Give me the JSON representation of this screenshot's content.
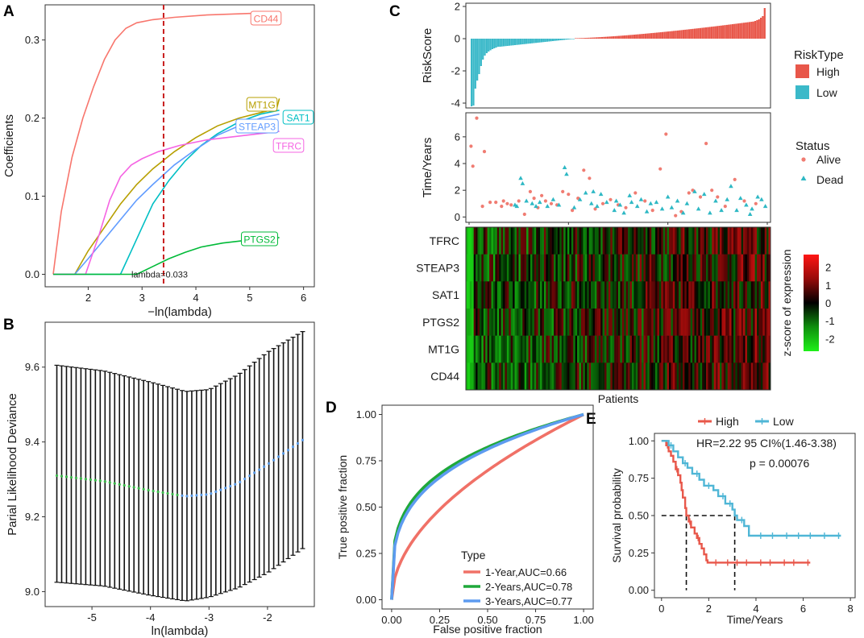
{
  "colors": {
    "high": "#E8574A",
    "low": "#3BB9C9",
    "alive": "#F07C72",
    "dead": "#2EB8C4",
    "cd44": "#F8766D",
    "mt1g": "#B79F00",
    "sat1": "#00BFC4",
    "steap3": "#619CFF",
    "tfrc": "#F564E3",
    "ptgs2": "#00BA38",
    "roc1": "#F07167",
    "roc2": "#1FA83A",
    "roc3": "#5D9BF0",
    "km_high": "#E8574A",
    "km_low": "#4FB6D6"
  },
  "panels": {
    "A": "A",
    "B": "B",
    "C": "C",
    "D": "D",
    "E": "E"
  },
  "chart_data": [
    {
      "id": "A",
      "type": "line",
      "title": "",
      "xlabel": "−ln(lambda)",
      "ylabel": "Coefficients",
      "xlim": [
        1.2,
        6.2
      ],
      "ylim": [
        -0.016,
        0.345
      ],
      "xticks": [
        "2",
        "3",
        "4",
        "5",
        "6"
      ],
      "yticks": [
        "0.0",
        "0.1",
        "0.2",
        "0.3"
      ],
      "cutoff": 3.4,
      "annotation": "lambda=0.033",
      "series": [
        {
          "name": "CD44",
          "key": "cd44",
          "x": [
            1.35,
            1.5,
            1.7,
            1.9,
            2.1,
            2.3,
            2.5,
            2.7,
            2.9,
            3.2,
            3.6,
            4.2,
            5.0,
            5.55
          ],
          "y": [
            0,
            0.08,
            0.15,
            0.2,
            0.24,
            0.275,
            0.3,
            0.315,
            0.322,
            0.326,
            0.329,
            0.332,
            0.334,
            0.335
          ]
        },
        {
          "name": "MT1G",
          "key": "mt1g",
          "x": [
            1.75,
            2.0,
            2.3,
            2.6,
            2.9,
            3.2,
            3.6,
            4.0,
            4.4,
            4.8,
            5.2,
            5.5,
            5.55
          ],
          "y": [
            0,
            0.03,
            0.06,
            0.09,
            0.115,
            0.135,
            0.157,
            0.175,
            0.19,
            0.2,
            0.207,
            0.212,
            0.225
          ]
        },
        {
          "name": "SAT1",
          "key": "sat1",
          "x": [
            2.6,
            2.8,
            3.0,
            3.2,
            3.5,
            3.8,
            4.1,
            4.4,
            4.8,
            5.2,
            5.55
          ],
          "y": [
            0,
            0.03,
            0.06,
            0.09,
            0.12,
            0.145,
            0.165,
            0.18,
            0.195,
            0.205,
            0.21
          ]
        },
        {
          "name": "STEAP3",
          "key": "steap3",
          "x": [
            1.75,
            2.0,
            2.3,
            2.6,
            2.9,
            3.2,
            3.6,
            4.0,
            4.4,
            4.8,
            5.2,
            5.55
          ],
          "y": [
            0,
            0.02,
            0.045,
            0.07,
            0.095,
            0.115,
            0.14,
            0.16,
            0.178,
            0.19,
            0.2,
            0.205
          ]
        },
        {
          "name": "TFRC",
          "key": "tfrc",
          "x": [
            1.95,
            2.2,
            2.4,
            2.6,
            2.8,
            3.0,
            3.3,
            3.7,
            4.2,
            4.8,
            5.55
          ],
          "y": [
            0,
            0.05,
            0.095,
            0.125,
            0.14,
            0.148,
            0.157,
            0.165,
            0.172,
            0.177,
            0.183
          ]
        },
        {
          "name": "PTGS2",
          "key": "ptgs2",
          "x": [
            2.9,
            3.2,
            3.5,
            3.8,
            4.1,
            4.5,
            5.0,
            5.55
          ],
          "y": [
            0,
            0.01,
            0.02,
            0.028,
            0.035,
            0.04,
            0.044,
            0.047
          ]
        }
      ]
    },
    {
      "id": "B",
      "type": "scatter",
      "title": "",
      "xlabel": "ln(lambda)",
      "ylabel": "Parial Likelihood Deviance",
      "xlim": [
        -5.8,
        -1.2
      ],
      "ylim": [
        8.96,
        9.72
      ],
      "xticks": [
        "-5",
        "-4",
        "-3",
        "-2"
      ],
      "yticks": [
        "9.0",
        "9.2",
        "9.4",
        "9.6"
      ],
      "x_start": -5.6,
      "x_end": -1.4,
      "count": 52,
      "mean_anchor_x": [
        -5.6,
        -4.8,
        -4.0,
        -3.4,
        -3.0,
        -2.5,
        -2.0,
        -1.4
      ],
      "mean_anchor_y": [
        9.31,
        9.295,
        9.27,
        9.255,
        9.26,
        9.29,
        9.34,
        9.405
      ],
      "upper_anchor_y": [
        9.605,
        9.59,
        9.56,
        9.535,
        9.54,
        9.58,
        9.64,
        9.695
      ],
      "lower_anchor_y": [
        9.025,
        9.015,
        8.99,
        8.975,
        8.985,
        9.01,
        9.05,
        9.115
      ]
    },
    {
      "id": "C1",
      "type": "bar",
      "title": "",
      "ylabel": "RiskScore",
      "ylim": [
        -4.3,
        2.2
      ],
      "yticks": [
        "-4",
        "-2",
        "0",
        "2"
      ],
      "n_low": 55,
      "n_high": 101,
      "legend_title": "RiskType",
      "legend": [
        "High",
        "Low"
      ],
      "low_values_head": [
        -4.2,
        -4.15,
        -3.1,
        -2.6,
        -2.2,
        -1.7,
        -1.3,
        -1.05,
        -0.9,
        -0.8,
        -0.72,
        -0.65,
        -0.6,
        -0.55,
        -0.5
      ],
      "low_min_tail": -0.5,
      "high_values_tail": [
        1.1,
        1.15,
        1.2,
        1.3,
        1.4,
        1.9
      ]
    },
    {
      "id": "C2",
      "type": "scatter",
      "title": "",
      "ylabel": "Time/Years",
      "ylim": [
        -0.4,
        7.8
      ],
      "yticks": [
        "0",
        "2",
        "4",
        "6"
      ],
      "legend_title": "Status",
      "legend": [
        "Alive",
        "Dead"
      ],
      "alive_points": [
        [
          1,
          5.3
        ],
        [
          2,
          3.8
        ],
        [
          4,
          7.4
        ],
        [
          7,
          0.8
        ],
        [
          8,
          4.9
        ],
        [
          11,
          1.1
        ],
        [
          14,
          1.1
        ],
        [
          17,
          0.8
        ],
        [
          18,
          1.2
        ],
        [
          20,
          1.0
        ],
        [
          22,
          0.9
        ],
        [
          26,
          1.2
        ],
        [
          29,
          0.2
        ],
        [
          32,
          1.9
        ],
        [
          34,
          1.4
        ],
        [
          36,
          0.7
        ],
        [
          38,
          1.6
        ],
        [
          40,
          1.2
        ],
        [
          43,
          1.0
        ],
        [
          46,
          0.9
        ],
        [
          49,
          1.9
        ],
        [
          52,
          1.7
        ],
        [
          54,
          0.5
        ],
        [
          57,
          1.4
        ],
        [
          60,
          3.5
        ],
        [
          63,
          2.9
        ],
        [
          66,
          0.6
        ],
        [
          70,
          1.0
        ],
        [
          74,
          1.3
        ],
        [
          78,
          0.9
        ],
        [
          82,
          0.7
        ],
        [
          87,
          1.8
        ],
        [
          92,
          1.2
        ],
        [
          96,
          0.5
        ],
        [
          100,
          3.6
        ],
        [
          103,
          6.2
        ],
        [
          108,
          0.1
        ],
        [
          111,
          0.4
        ],
        [
          115,
          1.8
        ],
        [
          117,
          2.0
        ],
        [
          121,
          1.5
        ],
        [
          124,
          5.5
        ],
        [
          127,
          2.0
        ],
        [
          130,
          1.5
        ],
        [
          134,
          0.8
        ],
        [
          139,
          2.8
        ],
        [
          144,
          1.2
        ],
        [
          150,
          1.0
        ]
      ],
      "dead_points": [
        [
          24,
          0.9
        ],
        [
          25,
          0.8
        ],
        [
          27,
          2.9
        ],
        [
          28,
          2.5
        ],
        [
          30,
          1.2
        ],
        [
          33,
          1.0
        ],
        [
          35,
          0.8
        ],
        [
          37,
          1.1
        ],
        [
          41,
          0.8
        ],
        [
          44,
          1.3
        ],
        [
          47,
          0.9
        ],
        [
          50,
          3.7
        ],
        [
          51,
          3.2
        ],
        [
          55,
          0.7
        ],
        [
          58,
          1.3
        ],
        [
          61,
          1.8
        ],
        [
          64,
          1.0
        ],
        [
          65,
          1.9
        ],
        [
          67,
          0.8
        ],
        [
          69,
          1.7
        ],
        [
          72,
          1.1
        ],
        [
          76,
          0.5
        ],
        [
          77,
          1.2
        ],
        [
          79,
          0.9
        ],
        [
          81,
          0.3
        ],
        [
          84,
          1.6
        ],
        [
          85,
          1.1
        ],
        [
          88,
          0.8
        ],
        [
          90,
          1.3
        ],
        [
          93,
          0.4
        ],
        [
          95,
          1.0
        ],
        [
          98,
          1.1
        ],
        [
          101,
          0.6
        ],
        [
          104,
          1.5
        ],
        [
          106,
          0.7
        ],
        [
          109,
          1.2
        ],
        [
          112,
          0.3
        ],
        [
          114,
          1.0
        ],
        [
          118,
          1.9
        ],
        [
          120,
          0.6
        ],
        [
          123,
          1.7
        ],
        [
          126,
          0.3
        ],
        [
          129,
          1.2
        ],
        [
          132,
          0.5
        ],
        [
          135,
          1.3
        ],
        [
          137,
          2.3
        ],
        [
          140,
          0.5
        ],
        [
          142,
          1.4
        ],
        [
          145,
          0.9
        ],
        [
          147,
          0.2
        ],
        [
          148,
          0.6
        ],
        [
          151,
          1.5
        ],
        [
          153,
          1.3
        ],
        [
          155,
          0.8
        ]
      ]
    },
    {
      "id": "C3",
      "type": "heatmap",
      "title": "",
      "xlabel": "Patients",
      "rows": [
        "TFRC",
        "STEAP3",
        "SAT1",
        "PTGS2",
        "MT1G",
        "CD44"
      ],
      "n_cols": 156,
      "legend_title": "z-score of expression",
      "scale_ticks": [
        "2",
        "1",
        "0",
        "-1",
        "-2"
      ],
      "scale_values": [
        2,
        1,
        0,
        -1,
        -2
      ],
      "scale_range": [
        -2.7,
        2.7
      ]
    },
    {
      "id": "D",
      "type": "line",
      "title": "",
      "xlabel": "False positive fraction",
      "ylabel": "True positive fraction",
      "xlim": [
        -0.05,
        1.05
      ],
      "ylim": [
        -0.05,
        1.05
      ],
      "xticks": [
        "0.00",
        "0.25",
        "0.50",
        "0.75",
        "1.00"
      ],
      "yticks": [
        "0.00",
        "0.25",
        "0.50",
        "0.75",
        "1.00"
      ],
      "legend_title": "Type",
      "series": [
        {
          "name": "1-Year,AUC=0.66",
          "key": "roc1",
          "exponent": 0.52
        },
        {
          "name": "2-Years,AUC=0.78",
          "key": "roc2",
          "exponent": 0.28
        },
        {
          "name": "3-Years,AUC=0.77",
          "key": "roc3",
          "exponent": 0.3
        }
      ]
    },
    {
      "id": "E",
      "type": "line",
      "title": "",
      "xlabel": "Time/Years",
      "ylabel": "Survival probability",
      "xlim": [
        -0.3,
        8.2
      ],
      "ylim": [
        -0.05,
        1.05
      ],
      "xticks": [
        "0",
        "2",
        "4",
        "6",
        "8"
      ],
      "yticks": [
        "0.00",
        "0.25",
        "0.50",
        "0.75",
        "1.00"
      ],
      "legend": [
        "High",
        "Low"
      ],
      "hr_text": "HR=2.22 95 CI%(1.46-3.38)",
      "p_text": "p = 0.00076",
      "median_high": 1.05,
      "median_low": 3.1,
      "series": [
        {
          "name": "High",
          "key": "km_high",
          "steps": [
            [
              0,
              1.0
            ],
            [
              0.2,
              0.97
            ],
            [
              0.3,
              0.93
            ],
            [
              0.4,
              0.9
            ],
            [
              0.5,
              0.86
            ],
            [
              0.6,
              0.81
            ],
            [
              0.7,
              0.77
            ],
            [
              0.8,
              0.72
            ],
            [
              0.85,
              0.67
            ],
            [
              0.9,
              0.62
            ],
            [
              1.0,
              0.55
            ],
            [
              1.05,
              0.5
            ],
            [
              1.15,
              0.46
            ],
            [
              1.25,
              0.42
            ],
            [
              1.4,
              0.38
            ],
            [
              1.5,
              0.35
            ],
            [
              1.6,
              0.31
            ],
            [
              1.7,
              0.28
            ],
            [
              1.8,
              0.24
            ],
            [
              1.9,
              0.2
            ],
            [
              1.95,
              0.185
            ],
            [
              6.3,
              0.185
            ]
          ],
          "censor": [
            [
              0.25,
              0.97
            ],
            [
              0.65,
              0.81
            ],
            [
              1.2,
              0.46
            ],
            [
              1.55,
              0.35
            ],
            [
              2.3,
              0.185
            ],
            [
              2.8,
              0.185
            ],
            [
              3.2,
              0.185
            ],
            [
              3.6,
              0.185
            ],
            [
              4.2,
              0.185
            ],
            [
              4.6,
              0.185
            ],
            [
              5.2,
              0.185
            ],
            [
              5.6,
              0.185
            ],
            [
              6.2,
              0.185
            ]
          ]
        },
        {
          "name": "Low",
          "key": "km_low",
          "steps": [
            [
              0,
              1.0
            ],
            [
              0.3,
              0.97
            ],
            [
              0.5,
              0.93
            ],
            [
              0.7,
              0.89
            ],
            [
              0.9,
              0.85
            ],
            [
              1.1,
              0.82
            ],
            [
              1.3,
              0.78
            ],
            [
              1.6,
              0.74
            ],
            [
              1.8,
              0.7
            ],
            [
              2.2,
              0.67
            ],
            [
              2.4,
              0.63
            ],
            [
              2.7,
              0.58
            ],
            [
              3.0,
              0.54
            ],
            [
              3.1,
              0.5
            ],
            [
              3.2,
              0.47
            ],
            [
              3.5,
              0.43
            ],
            [
              3.7,
              0.365
            ],
            [
              7.6,
              0.365
            ]
          ],
          "censor": [
            [
              0.4,
              0.97
            ],
            [
              1.0,
              0.85
            ],
            [
              1.5,
              0.78
            ],
            [
              2.0,
              0.7
            ],
            [
              2.6,
              0.63
            ],
            [
              2.9,
              0.58
            ],
            [
              3.4,
              0.47
            ],
            [
              4.2,
              0.365
            ],
            [
              4.7,
              0.365
            ],
            [
              5.3,
              0.365
            ],
            [
              5.8,
              0.365
            ],
            [
              6.3,
              0.365
            ],
            [
              6.9,
              0.365
            ],
            [
              7.5,
              0.365
            ]
          ]
        }
      ]
    }
  ]
}
